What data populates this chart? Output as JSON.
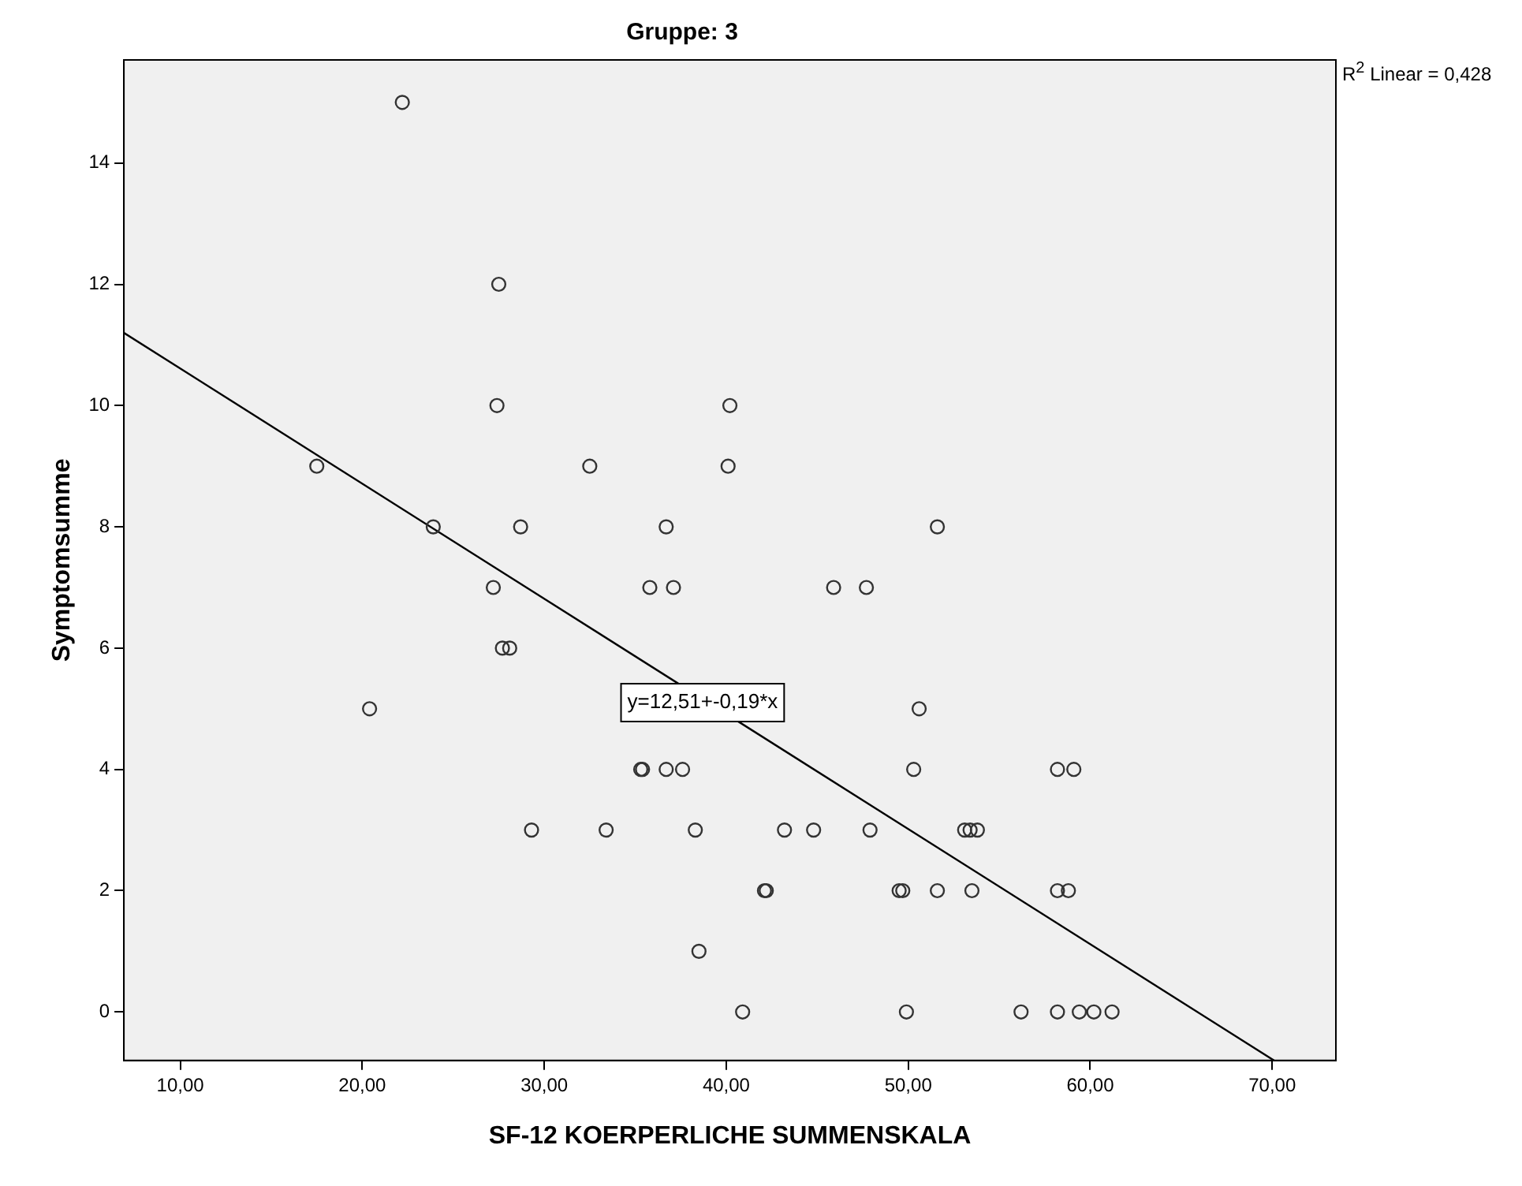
{
  "chart_data": {
    "type": "scatter",
    "title": "Gruppe: 3",
    "xlabel": "SF-12 KOERPERLICHE SUMMENSKALA",
    "ylabel": "Symptomsumme",
    "xlim": [
      6.9,
      73.5
    ],
    "ylim": [
      -0.8,
      15.7
    ],
    "xticks": [
      {
        "value": 10,
        "label": "10,00"
      },
      {
        "value": 20,
        "label": "20,00"
      },
      {
        "value": 30,
        "label": "30,00"
      },
      {
        "value": 40,
        "label": "40,00"
      },
      {
        "value": 50,
        "label": "50,00"
      },
      {
        "value": 60,
        "label": "60,00"
      },
      {
        "value": 70,
        "label": "70,00"
      }
    ],
    "yticks": [
      0,
      2,
      4,
      6,
      8,
      10,
      12,
      14
    ],
    "legend": false,
    "marker": "circle",
    "series": [
      {
        "color": "#333333",
        "x": [
          22.2,
          27.5,
          27.4,
          40.2,
          17.5,
          32.5,
          40.1,
          23.9,
          28.7,
          36.7,
          51.6,
          27.2,
          35.8,
          37.1,
          45.9,
          47.7,
          27.7,
          28.1,
          20.4,
          50.6,
          35.3,
          35.4,
          36.7,
          37.6,
          50.3,
          58.2,
          59.1,
          29.3,
          33.4,
          38.3,
          43.2,
          44.8,
          47.9,
          53.1,
          53.4,
          53.8,
          42.1,
          42.2,
          49.5,
          49.7,
          51.6,
          53.5,
          58.2,
          58.8,
          38.5,
          40.9,
          49.9,
          56.2,
          58.2,
          59.4,
          60.2,
          61.2
        ],
        "values": [
          15,
          12,
          10,
          10,
          9,
          9,
          9,
          8,
          8,
          8,
          8,
          7,
          7,
          7,
          7,
          7,
          6,
          6,
          5,
          5,
          4,
          4,
          4,
          4,
          4,
          4,
          4,
          3,
          3,
          3,
          3,
          3,
          3,
          3,
          3,
          3,
          2,
          2,
          2,
          2,
          2,
          2,
          2,
          2,
          1,
          0,
          0,
          0,
          0,
          0,
          0,
          0
        ]
      },
      {
        "type": "line",
        "color": "#000000",
        "line_style": "solid",
        "marker": "none",
        "x": [
          6.9,
          70.1
        ],
        "values": [
          11.2,
          -0.8
        ]
      }
    ],
    "annotations": [
      {
        "text": "y=12,51+-0,19*x",
        "x": 38.7,
        "y": 5.1
      },
      "R$^{2}$ Linear = 0,428"
    ]
  }
}
